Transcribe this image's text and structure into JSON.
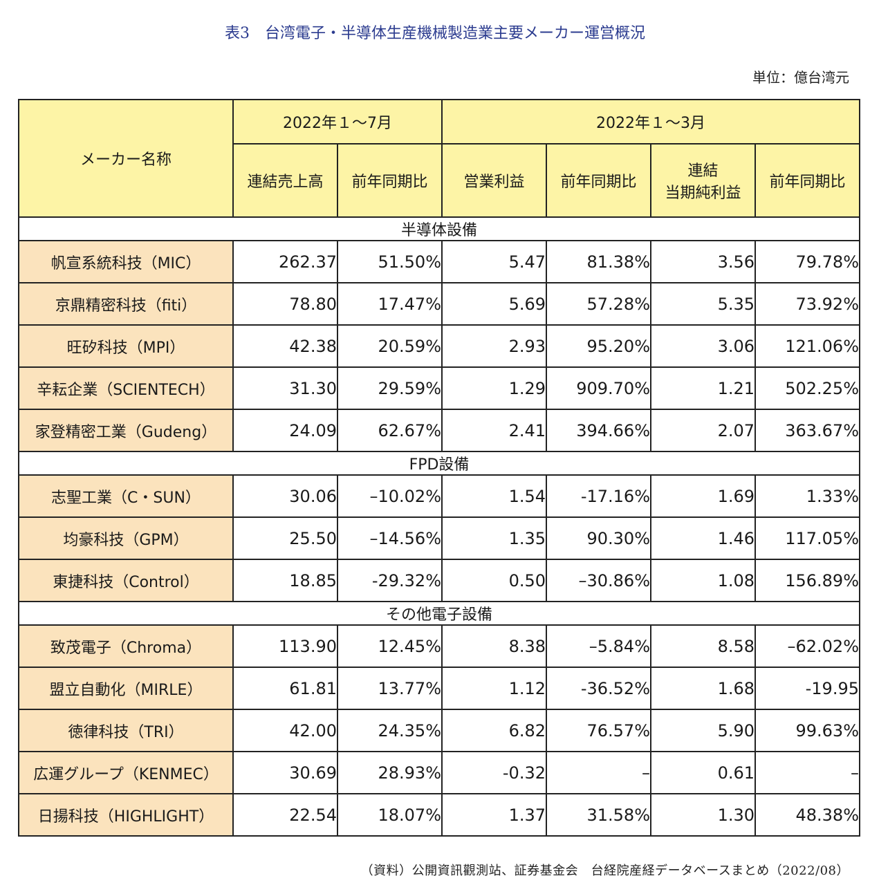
{
  "title": "表3　台湾電子・半導体生産機械製造業主要メーカー運営概況",
  "unit": "単位：億台湾元",
  "header": {
    "maker": "メーカー名称",
    "period1": "2022年１～7月",
    "period2": "2022年１～3月",
    "col1": "連結売上高",
    "col2": "前年同期比",
    "col3": "営業利益",
    "col4": "前年同期比",
    "col5a": "連結",
    "col5b": "当期純利益",
    "col6": "前年同期比"
  },
  "sections": [
    {
      "label": "半導体設備",
      "rows": [
        {
          "name": "帆宣系統科技（MIC）",
          "v": [
            "262.37",
            "51.50%",
            "5.47",
            "81.38%",
            "3.56",
            "79.78%"
          ]
        },
        {
          "name": "京鼎精密科技（fiti）",
          "v": [
            "78.80",
            "17.47%",
            "5.69",
            "57.28%",
            "5.35",
            "73.92%"
          ]
        },
        {
          "name": "旺矽科技（MPI）",
          "v": [
            "42.38",
            "20.59%",
            "2.93",
            "95.20%",
            "3.06",
            "121.06%"
          ]
        },
        {
          "name": "辛耘企業（SCIENTECH）",
          "v": [
            "31.30",
            "29.59%",
            "1.29",
            "909.70%",
            "1.21",
            "502.25%"
          ]
        },
        {
          "name": "家登精密工業（Gudeng）",
          "v": [
            "24.09",
            "62.67%",
            "2.41",
            "394.66%",
            "2.07",
            "363.67%"
          ]
        }
      ]
    },
    {
      "label": "FPD設備",
      "rows": [
        {
          "name": "志聖工業（C・SUN）",
          "v": [
            "30.06",
            "–10.02%",
            "1.54",
            "-17.16%",
            "1.69",
            "1.33%"
          ]
        },
        {
          "name": "均豪科技（GPM）",
          "v": [
            "25.50",
            "–14.56%",
            "1.35",
            "90.30%",
            "1.46",
            "117.05%"
          ]
        },
        {
          "name": "東捷科技（Control）",
          "v": [
            "18.85",
            "-29.32%",
            "0.50",
            "–30.86%",
            "1.08",
            "156.89%"
          ]
        }
      ]
    },
    {
      "label": "その他電子設備",
      "rows": [
        {
          "name": "致茂電子（Chroma）",
          "v": [
            "113.90",
            "12.45%",
            "8.38",
            "–5.84%",
            "8.58",
            "–62.02%"
          ]
        },
        {
          "name": "盟立自動化（MIRLE）",
          "v": [
            "61.81",
            "13.77%",
            "1.12",
            "-36.52%",
            "1.68",
            "-19.95"
          ]
        },
        {
          "name": "徳律科技（TRI）",
          "v": [
            "42.00",
            "24.35%",
            "6.82",
            "76.57%",
            "5.90",
            "99.63%"
          ]
        },
        {
          "name": "広運グループ（KENMEC）",
          "v": [
            "30.69",
            "28.93%",
            "-0.32",
            "–",
            "0.61",
            "–"
          ]
        },
        {
          "name": "日揚科技（HIGHLIGHT）",
          "v": [
            "22.54",
            "18.07%",
            "1.37",
            "31.58%",
            "1.30",
            "48.38%"
          ]
        }
      ]
    }
  ],
  "source": "（資料）公開資訊觀測站、証券基金会　台経院産経データベースまとめ（2022/08）"
}
